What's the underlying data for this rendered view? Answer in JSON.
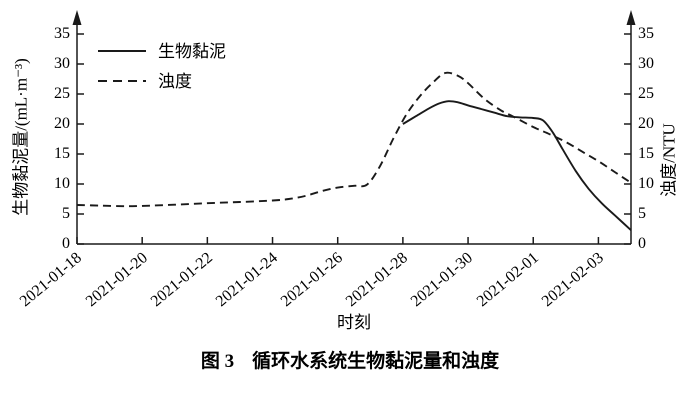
{
  "figure": {
    "x_axis_title": "时刻",
    "left_axis_title": "生物黏泥量/(mL·m⁻³)",
    "right_axis_title": "浊度/NTU",
    "caption_number": "图 3",
    "caption_title": "循环水系统生物黏泥量和浊度"
  },
  "legend": [
    {
      "id": "biofilm",
      "label": "生物黏泥",
      "line_style": "solid"
    },
    {
      "id": "turbidity",
      "label": "浊度",
      "line_style": "dashed"
    }
  ],
  "colors": {
    "line": "#1a1a1a",
    "text": "#000000",
    "background": "#ffffff"
  },
  "chart_data": {
    "type": "line",
    "title": "图3 循环水系统生物黏泥量和浊度",
    "xlabel": "时刻",
    "ylabel_left": "生物黏泥量/(mL·m⁻³)",
    "ylabel_right": "浊度/NTU",
    "x_tick_labels": [
      "2021-01-18",
      "2021-01-20",
      "2021-01-22",
      "2021-01-24",
      "2021-01-26",
      "2021-01-28",
      "2021-01-30",
      "2021-02-01",
      "2021-02-03"
    ],
    "x_tick_day_offsets": [
      0,
      2,
      4,
      6,
      8,
      10,
      12,
      14,
      16
    ],
    "x_range_days": [
      0,
      17
    ],
    "y_ticks": [
      0,
      5,
      10,
      15,
      20,
      25,
      30,
      35
    ],
    "ylim": [
      0,
      35
    ],
    "grid": false,
    "legend_position": "top-left",
    "series": [
      {
        "id": "biofilm",
        "name": "生物黏泥",
        "axis": "left",
        "unit": "mL·m⁻³",
        "line_style": "solid",
        "points": [
          [
            10,
            20
          ],
          [
            10.4,
            21.3
          ],
          [
            10.8,
            22.6
          ],
          [
            11.1,
            23.4
          ],
          [
            11.4,
            23.8
          ],
          [
            11.7,
            23.6
          ],
          [
            12,
            23.1
          ],
          [
            12.4,
            22.5
          ],
          [
            12.8,
            21.9
          ],
          [
            13.2,
            21.3
          ],
          [
            13.6,
            21.1
          ],
          [
            14,
            21.0
          ],
          [
            14.3,
            20.6
          ],
          [
            14.6,
            18.6
          ],
          [
            14.9,
            15.8
          ],
          [
            15.3,
            12.2
          ],
          [
            15.7,
            9.2
          ],
          [
            16.1,
            6.8
          ],
          [
            16.5,
            4.8
          ],
          [
            17,
            2.3
          ]
        ]
      },
      {
        "id": "turbidity",
        "name": "浊度",
        "axis": "right",
        "unit": "NTU",
        "line_style": "dashed",
        "points": [
          [
            0,
            6.5
          ],
          [
            0.7,
            6.4
          ],
          [
            1.4,
            6.3
          ],
          [
            2,
            6.35
          ],
          [
            3,
            6.55
          ],
          [
            4,
            6.8
          ],
          [
            5,
            7.0
          ],
          [
            6,
            7.25
          ],
          [
            6.5,
            7.5
          ],
          [
            7,
            8.0
          ],
          [
            7.5,
            8.8
          ],
          [
            8,
            9.4
          ],
          [
            8.5,
            9.7
          ],
          [
            8.9,
            9.9
          ],
          [
            9.3,
            13
          ],
          [
            9.7,
            17.5
          ],
          [
            10.1,
            21.5
          ],
          [
            10.5,
            24.5
          ],
          [
            10.9,
            26.8
          ],
          [
            11.3,
            28.5
          ],
          [
            11.7,
            28.0
          ],
          [
            12,
            26.8
          ],
          [
            12.5,
            24.2
          ],
          [
            13,
            22.3
          ],
          [
            13.4,
            21.2
          ],
          [
            14,
            19.5
          ],
          [
            14.5,
            18.3
          ],
          [
            15,
            17
          ],
          [
            15.5,
            15.4
          ],
          [
            16,
            13.8
          ],
          [
            16.5,
            12
          ],
          [
            17,
            10.2
          ]
        ]
      }
    ]
  }
}
